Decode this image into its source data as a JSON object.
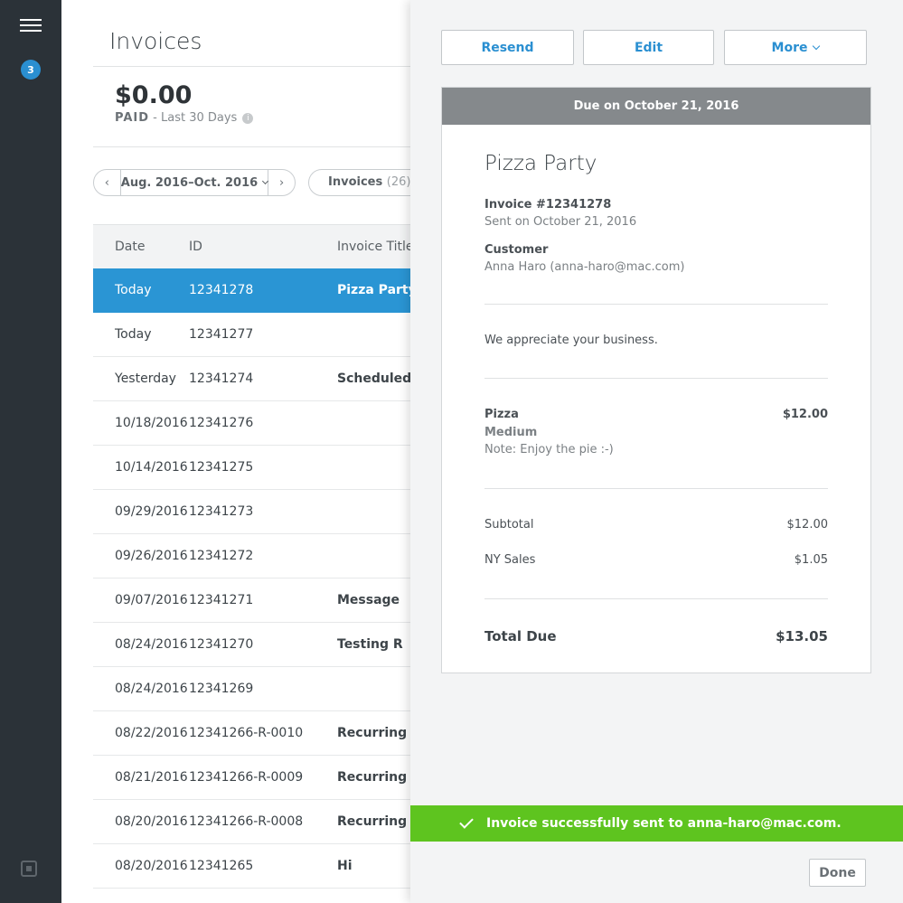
{
  "sidebar": {
    "menu_icon": "hamburger-menu-icon",
    "notification_count": "3",
    "logo_icon": "square-logo-icon"
  },
  "header": {
    "title": "Invoices",
    "amount": "$0.00",
    "paid_label": "PAID",
    "paid_period": " - Last 30 Days"
  },
  "filters": {
    "date_range": "Aug. 2016–Oct. 2016",
    "invoices_label": "Invoices",
    "invoices_count": "(26)"
  },
  "table": {
    "headers": [
      "Date",
      "ID",
      "Invoice Title"
    ],
    "rows": [
      {
        "date": "Today",
        "id": "12341278",
        "title": "Pizza Party"
      },
      {
        "date": "Today",
        "id": "12341277",
        "title": ""
      },
      {
        "date": "Yesterday",
        "id": "12341274",
        "title": "Scheduled"
      },
      {
        "date": "10/18/2016",
        "id": "12341276",
        "title": ""
      },
      {
        "date": "10/14/2016",
        "id": "12341275",
        "title": ""
      },
      {
        "date": "09/29/2016",
        "id": "12341273",
        "title": ""
      },
      {
        "date": "09/26/2016",
        "id": "12341272",
        "title": ""
      },
      {
        "date": "09/07/2016",
        "id": "12341271",
        "title": "Message"
      },
      {
        "date": "08/24/2016",
        "id": "12341270",
        "title": "Testing R"
      },
      {
        "date": "08/24/2016",
        "id": "12341269",
        "title": ""
      },
      {
        "date": "08/22/2016",
        "id": "12341266-R-0010",
        "title": "Recurring"
      },
      {
        "date": "08/21/2016",
        "id": "12341266-R-0009",
        "title": "Recurring"
      },
      {
        "date": "08/20/2016",
        "id": "12341266-R-0008",
        "title": "Recurring"
      },
      {
        "date": "08/20/2016",
        "id": "12341265",
        "title": "Hi"
      }
    ]
  },
  "detail": {
    "actions": {
      "resend": "Resend",
      "edit": "Edit",
      "more": "More"
    },
    "due_banner": "Due on October 21, 2016",
    "title": "Pizza Party",
    "invoice_number": "Invoice #12341278",
    "sent_on": "Sent on October 21, 2016",
    "customer_label": "Customer",
    "customer_value": "Anna Haro (anna-haro@mac.com)",
    "message": "We appreciate your business.",
    "item": {
      "name": "Pizza",
      "variant": "Medium",
      "note": "Note: Enjoy the pie :-)",
      "price": "$12.00"
    },
    "subtotal_label": "Subtotal",
    "subtotal_value": "$12.00",
    "tax_label": "NY Sales",
    "tax_value": "$1.05",
    "total_label": "Total Due",
    "total_value": "$13.05"
  },
  "toast": {
    "message": "Invoice successfully sent to anna-haro@mac.com.",
    "color": "#5ec41f"
  },
  "footer": {
    "done": "Done"
  },
  "colors": {
    "sidebar": "#2b3238",
    "accent": "#2a95d4",
    "banner": "#85898c"
  }
}
